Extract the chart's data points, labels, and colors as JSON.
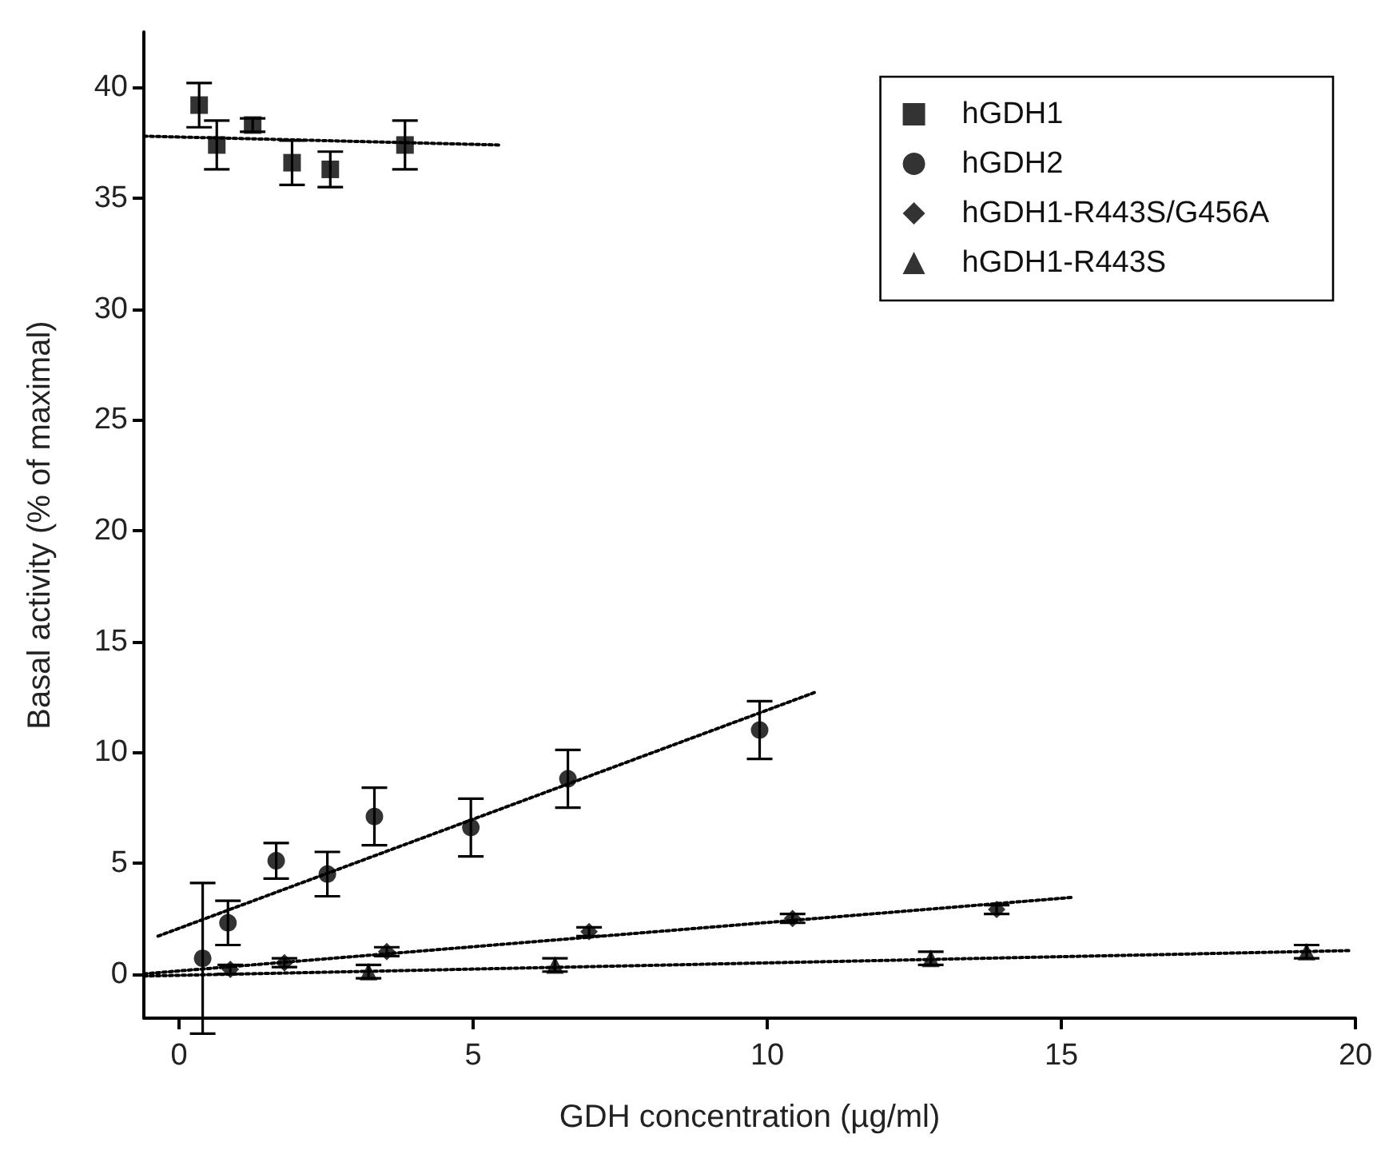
{
  "chart_data": {
    "type": "scatter",
    "xlabel": "GDH concentration (µg/ml)",
    "ylabel": "Basal activity (% of maximal)",
    "xlim": [
      -0.6,
      20
    ],
    "xticks": [
      0,
      5,
      10,
      15,
      20
    ],
    "ylim": [
      -2,
      42.5
    ],
    "yticks": [
      0,
      5,
      10,
      15,
      20,
      25,
      30,
      35,
      40
    ],
    "grid": false,
    "legend": "top right",
    "series": [
      {
        "name": "hGDH1",
        "color": "#000000",
        "marker": "square",
        "x": [
          0.34,
          0.64,
          1.25,
          1.92,
          2.57,
          3.84
        ],
        "values": [
          39.2,
          37.4,
          38.3,
          36.6,
          36.3,
          37.4
        ],
        "errors": [
          1.0,
          1.1,
          0.3,
          1.0,
          0.8,
          1.1
        ]
      },
      {
        "name": "hGDH2",
        "color": "#000000",
        "marker": "circle",
        "x": [
          0.4,
          0.83,
          1.65,
          2.52,
          3.32,
          4.96,
          6.61,
          9.87
        ],
        "values": [
          0.7,
          2.3,
          5.1,
          4.5,
          7.1,
          6.6,
          8.8,
          11.0
        ],
        "errors": [
          3.4,
          1.0,
          0.8,
          1.0,
          1.3,
          1.3,
          1.3,
          1.3
        ]
      },
      {
        "name": "hGDH1-R443S/G456A",
        "color": "#000000",
        "marker": "diamond",
        "x": [
          0.87,
          1.79,
          3.53,
          6.97,
          10.43,
          13.9
        ],
        "values": [
          0.2,
          0.5,
          1.0,
          1.9,
          2.5,
          2.9
        ],
        "errors": [
          0.2,
          0.2,
          0.2,
          0.2,
          0.2,
          0.2
        ]
      },
      {
        "name": "hGDH1-R443S",
        "color": "#000000",
        "marker": "triangle",
        "x": [
          3.22,
          6.39,
          12.78,
          19.17
        ],
        "values": [
          0.1,
          0.4,
          0.7,
          1.0
        ],
        "errors": [
          0.3,
          0.3,
          0.3,
          0.3
        ]
      },
      {
        "type": "line",
        "color": "#000000",
        "marker": "none",
        "line_style": "dotted",
        "x": [
          -0.6,
          5.45
        ],
        "values": [
          37.8,
          37.4
        ]
      },
      {
        "type": "line",
        "color": "#000000",
        "marker": "none",
        "line_style": "dotted",
        "x": [
          -0.36,
          10.81
        ],
        "values": [
          1.7,
          12.7
        ]
      },
      {
        "type": "line",
        "color": "#000000",
        "marker": "none",
        "line_style": "dotted",
        "x": [
          -0.6,
          15.19
        ],
        "values": [
          0.0,
          3.45
        ]
      },
      {
        "type": "line",
        "color": "#000000",
        "marker": "none",
        "line_style": "dotted",
        "x": [
          -0.6,
          19.93
        ],
        "values": [
          -0.1,
          1.05
        ]
      }
    ]
  }
}
